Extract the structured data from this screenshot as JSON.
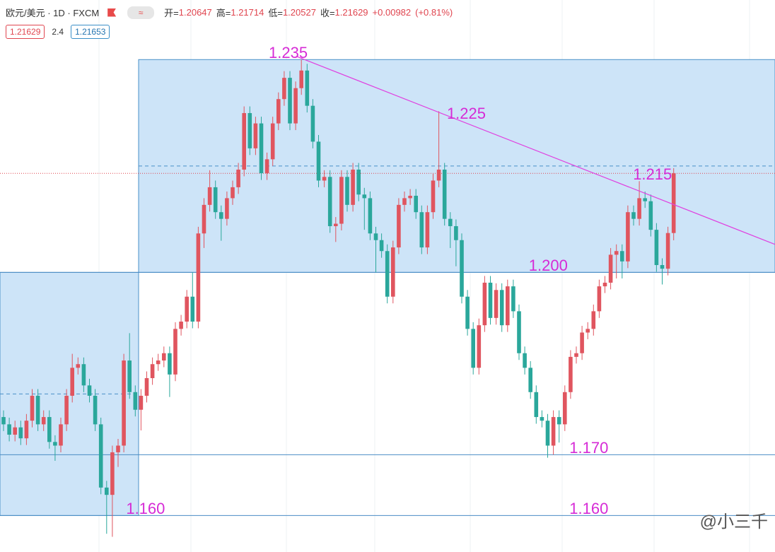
{
  "chart_data": {
    "type": "candlestick",
    "title": "欧元/美元 · 1D · FXCM",
    "header": {
      "open_label": "开=",
      "high_label": "高=",
      "low_label": "低=",
      "close_label": "收=",
      "change": {
        "value": 0.00982,
        "label": "+0.00982"
      },
      "change_pct": {
        "value": 0.81,
        "label": "(+0.81%)"
      },
      "spread": 2.4,
      "ask": 1.21653
    },
    "up_color": "#e0555f",
    "down_color": "#2aa79b",
    "ylim": [
      1.154,
      1.2448
    ],
    "ohlc": [
      [
        1.1762,
        1.1773,
        1.1739,
        1.175
      ],
      [
        1.175,
        1.1761,
        1.1722,
        1.1733
      ],
      [
        1.1733,
        1.1756,
        1.1722,
        1.1745
      ],
      [
        1.1745,
        1.1756,
        1.1716,
        1.1727
      ],
      [
        1.1727,
        1.1767,
        1.1716,
        1.1756
      ],
      [
        1.1756,
        1.1808,
        1.1745,
        1.1797
      ],
      [
        1.1797,
        1.1808,
        1.1739,
        1.175
      ],
      [
        1.175,
        1.1773,
        1.1739,
        1.1762
      ],
      [
        1.1762,
        1.1773,
        1.171,
        1.1721
      ],
      [
        1.1721,
        1.1732,
        1.169,
        1.1715
      ],
      [
        1.1715,
        1.1761,
        1.1704,
        1.175
      ],
      [
        1.175,
        1.1808,
        1.1739,
        1.1797
      ],
      [
        1.1797,
        1.1866,
        1.1786,
        1.1843
      ],
      [
        1.1843,
        1.186,
        1.1832,
        1.1849
      ],
      [
        1.1849,
        1.186,
        1.1803,
        1.1814
      ],
      [
        1.1814,
        1.1825,
        1.1786,
        1.1797
      ],
      [
        1.1797,
        1.1808,
        1.1739,
        1.175
      ],
      [
        1.175,
        1.1761,
        1.1635,
        1.1646
      ],
      [
        1.1646,
        1.1657,
        1.157,
        1.1634
      ],
      [
        1.1634,
        1.1715,
        1.1565,
        1.1704
      ],
      [
        1.1704,
        1.1726,
        1.168,
        1.1715
      ],
      [
        1.1715,
        1.1866,
        1.1704,
        1.1855
      ],
      [
        1.1855,
        1.19,
        1.1792,
        1.1803
      ],
      [
        1.1803,
        1.1814,
        1.1763,
        1.1774
      ],
      [
        1.1774,
        1.1808,
        1.174,
        1.1797
      ],
      [
        1.1797,
        1.1837,
        1.1786,
        1.1826
      ],
      [
        1.1826,
        1.186,
        1.1815,
        1.1849
      ],
      [
        1.1849,
        1.1866,
        1.1838,
        1.1855
      ],
      [
        1.1855,
        1.1878,
        1.1844,
        1.1867
      ],
      [
        1.1867,
        1.1878,
        1.1795,
        1.1832
      ],
      [
        1.1832,
        1.1918,
        1.1821,
        1.1907
      ],
      [
        1.1907,
        1.193,
        1.1896,
        1.1919
      ],
      [
        1.1919,
        1.1971,
        1.1908,
        1.196
      ],
      [
        1.196,
        1.2,
        1.1908,
        1.1919
      ],
      [
        1.1919,
        1.2075,
        1.1908,
        1.2064
      ],
      [
        1.2064,
        1.2122,
        1.204,
        1.2111
      ],
      [
        1.2111,
        1.2168,
        1.21,
        1.214
      ],
      [
        1.214,
        1.2151,
        1.2088,
        1.2099
      ],
      [
        1.2099,
        1.211,
        1.2052,
        1.2088
      ],
      [
        1.2088,
        1.2133,
        1.2077,
        1.2122
      ],
      [
        1.2122,
        1.2151,
        1.2111,
        1.214
      ],
      [
        1.214,
        1.218,
        1.2129,
        1.2169
      ],
      [
        1.2169,
        1.2273,
        1.2158,
        1.2262
      ],
      [
        1.2262,
        1.2273,
        1.2193,
        1.2204
      ],
      [
        1.2204,
        1.2256,
        1.2193,
        1.2245
      ],
      [
        1.2245,
        1.2256,
        1.2152,
        1.2163
      ],
      [
        1.2163,
        1.2197,
        1.2152,
        1.2186
      ],
      [
        1.2186,
        1.2256,
        1.2175,
        1.2245
      ],
      [
        1.2245,
        1.2296,
        1.2234,
        1.2285
      ],
      [
        1.2285,
        1.2331,
        1.2274,
        1.232
      ],
      [
        1.232,
        1.2331,
        1.2234,
        1.2245
      ],
      [
        1.2245,
        1.2314,
        1.2234,
        1.2303
      ],
      [
        1.2303,
        1.235,
        1.2292,
        1.2332
      ],
      [
        1.2332,
        1.2343,
        1.2263,
        1.2274
      ],
      [
        1.2274,
        1.2285,
        1.2204,
        1.2215
      ],
      [
        1.2215,
        1.2226,
        1.214,
        1.2151
      ],
      [
        1.2151,
        1.2168,
        1.214,
        1.2157
      ],
      [
        1.2157,
        1.2168,
        1.2065,
        1.2076
      ],
      [
        1.2076,
        1.2091,
        1.205,
        1.208
      ],
      [
        1.208,
        1.2168,
        1.2069,
        1.2157
      ],
      [
        1.2157,
        1.2168,
        1.21,
        1.2111
      ],
      [
        1.2111,
        1.218,
        1.21,
        1.2169
      ],
      [
        1.2169,
        1.218,
        1.2117,
        1.2128
      ],
      [
        1.2128,
        1.2139,
        1.207,
        1.2122
      ],
      [
        1.2122,
        1.2133,
        1.2053,
        1.2064
      ],
      [
        1.2064,
        1.2075,
        1.2,
        1.2053
      ],
      [
        1.2053,
        1.2064,
        1.2024,
        1.2035
      ],
      [
        1.2035,
        1.2046,
        1.1949,
        1.196
      ],
      [
        1.196,
        1.2052,
        1.1949,
        1.2041
      ],
      [
        1.2041,
        1.2122,
        1.203,
        1.2111
      ],
      [
        1.2111,
        1.2133,
        1.21,
        1.2122
      ],
      [
        1.2122,
        1.2137,
        1.2111,
        1.2126
      ],
      [
        1.2126,
        1.2137,
        1.2088,
        1.2099
      ],
      [
        1.2099,
        1.211,
        1.203,
        1.2041
      ],
      [
        1.2041,
        1.211,
        1.203,
        1.2099
      ],
      [
        1.2099,
        1.2162,
        1.2088,
        1.2151
      ],
      [
        1.2151,
        1.2265,
        1.214,
        1.2169
      ],
      [
        1.2169,
        1.218,
        1.2077,
        1.2088
      ],
      [
        1.2088,
        1.2099,
        1.204,
        1.2076
      ],
      [
        1.2076,
        1.2087,
        1.201,
        1.2053
      ],
      [
        1.2053,
        1.2064,
        1.1949,
        1.196
      ],
      [
        1.196,
        1.1971,
        1.1896,
        1.1907
      ],
      [
        1.1907,
        1.1918,
        1.1832,
        1.1843
      ],
      [
        1.1843,
        1.1924,
        1.1832,
        1.1913
      ],
      [
        1.1913,
        1.1994,
        1.1902,
        1.1983
      ],
      [
        1.1983,
        1.1994,
        1.1914,
        1.1925
      ],
      [
        1.1925,
        1.1982,
        1.1914,
        1.1971
      ],
      [
        1.1971,
        1.1982,
        1.1902,
        1.1913
      ],
      [
        1.1913,
        1.1988,
        1.1902,
        1.1977
      ],
      [
        1.1977,
        1.1988,
        1.1925,
        1.1936
      ],
      [
        1.1936,
        1.1947,
        1.1856,
        1.1867
      ],
      [
        1.1867,
        1.1878,
        1.1832,
        1.1843
      ],
      [
        1.1843,
        1.1854,
        1.1792,
        1.1803
      ],
      [
        1.1803,
        1.1814,
        1.1751,
        1.1762
      ],
      [
        1.1762,
        1.1773,
        1.1745,
        1.1756
      ],
      [
        1.1756,
        1.1767,
        1.1695,
        1.1715
      ],
      [
        1.1715,
        1.1773,
        1.17,
        1.1762
      ],
      [
        1.1762,
        1.1773,
        1.172,
        1.175
      ],
      [
        1.175,
        1.1814,
        1.1739,
        1.1803
      ],
      [
        1.1803,
        1.1872,
        1.1792,
        1.1861
      ],
      [
        1.1861,
        1.1878,
        1.185,
        1.1867
      ],
      [
        1.1867,
        1.1912,
        1.1856,
        1.1901
      ],
      [
        1.1901,
        1.1918,
        1.189,
        1.1907
      ],
      [
        1.1907,
        1.1947,
        1.1896,
        1.1936
      ],
      [
        1.1936,
        1.1988,
        1.1925,
        1.1977
      ],
      [
        1.1977,
        1.1994,
        1.1966,
        1.1983
      ],
      [
        1.1983,
        1.204,
        1.1972,
        1.2029
      ],
      [
        1.2029,
        1.2046,
        1.199,
        1.2035
      ],
      [
        1.2035,
        1.2046,
        1.199,
        1.2018
      ],
      [
        1.2018,
        1.211,
        1.2007,
        1.2099
      ],
      [
        1.2099,
        1.211,
        1.2077,
        1.2088
      ],
      [
        1.2088,
        1.215,
        1.2077,
        1.2122
      ],
      [
        1.2122,
        1.2133,
        1.2106,
        1.2117
      ],
      [
        1.2117,
        1.2128,
        1.2059,
        1.207
      ],
      [
        1.207,
        1.2081,
        1.2001,
        1.2012
      ],
      [
        1.2012,
        1.2023,
        1.198,
        1.2006
      ],
      [
        1.2006,
        1.2075,
        1.1995,
        1.20647
      ],
      [
        1.20647,
        1.21714,
        1.20527,
        1.21629
      ]
    ],
    "zones": [
      {
        "low": 1.16,
        "high": 1.2
      },
      {
        "low": 1.2,
        "high": 1.235
      }
    ],
    "hlines": [
      1.2,
      1.17,
      1.16
    ],
    "trendline": {
      "from": [
        51.2,
        1.2355
      ],
      "to": [
        134.7,
        1.2046
      ],
      "color": "#e040e0"
    },
    "annotations": [
      {
        "text": "1.235",
        "value": 1.235,
        "index": 46.3
      },
      {
        "text": "1.225",
        "value": 1.225,
        "index": 77.4
      },
      {
        "text": "1.215",
        "value": 1.215,
        "index": 109.9
      },
      {
        "text": "1.200",
        "value": 1.2,
        "index": 91.7
      },
      {
        "text": "1.170",
        "value": 1.17,
        "index": 98.8
      },
      {
        "text": "1.160",
        "value": 1.16,
        "index": 21.4
      },
      {
        "text": "1.160",
        "value": 1.16,
        "index": 98.8
      }
    ],
    "annotation_color": "#d62bd6",
    "watermark": "@小三千"
  }
}
